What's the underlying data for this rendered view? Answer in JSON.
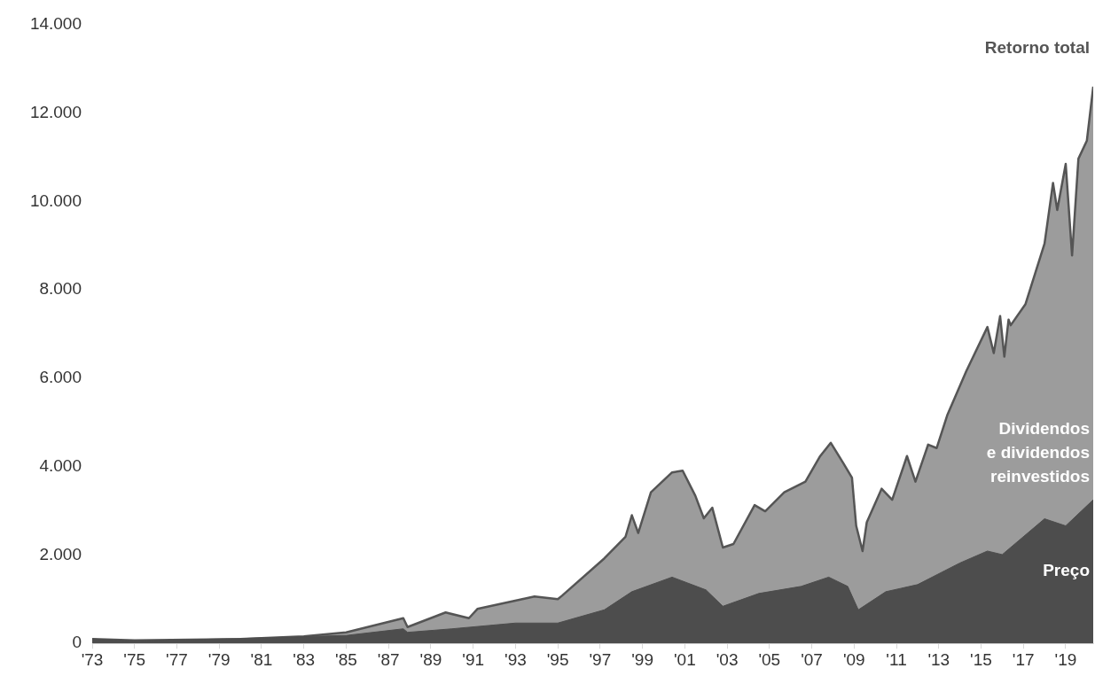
{
  "chart_data": {
    "type": "area",
    "annotations": [
      {
        "text": "Dividendos e dividendos reinvestidos",
        "x": 2020.3,
        "y": 4300
      }
    ],
    "series": [
      {
        "name": "Retorno total",
        "color": "#9c9c9c",
        "x": [
          1973,
          1975,
          1980,
          1983,
          1985,
          1987.7,
          1987.9,
          1989.7,
          1990.8,
          1991.2,
          1993.9,
          1995,
          1995.2,
          1997.2,
          1998.2,
          1998.5,
          1998.8,
          1999.4,
          2000.4,
          2000.9,
          2001.5,
          2001.9,
          2002.3,
          2002.8,
          2003.3,
          2004.3,
          2004.8,
          2005.7,
          2006.7,
          2007.4,
          2007.9,
          2008.5,
          2008.9,
          2009.1,
          2009.4,
          2009.6,
          2010.3,
          2010.8,
          2011.5,
          2011.9,
          2012.5,
          2012.9,
          2013.4,
          2014.3,
          2015.3,
          2015.6,
          2015.9,
          2016.1,
          2016.3,
          2016.4,
          2017.1,
          2018,
          2018.4,
          2018.6,
          2019,
          2019.3,
          2019.6,
          2020,
          2020.3
        ],
        "values": [
          100,
          70,
          100,
          160,
          250,
          570,
          370,
          700,
          570,
          780,
          1060,
          1000,
          1080,
          1925,
          2415,
          2900,
          2500,
          3420,
          3870,
          3910,
          3340,
          2830,
          3070,
          2170,
          2250,
          3130,
          2990,
          3420,
          3660,
          4240,
          4540,
          4070,
          3750,
          2660,
          2090,
          2740,
          3500,
          3250,
          4240,
          3660,
          4500,
          4420,
          5160,
          6160,
          7160,
          6570,
          7410,
          6490,
          7330,
          7200,
          7680,
          9050,
          10420,
          9810,
          10850,
          8780,
          10970,
          11380,
          12600
        ]
      },
      {
        "name": "Preço",
        "color": "#4d4d4d",
        "x": [
          1973,
          1975,
          1980,
          1985,
          1987.7,
          1987.9,
          1990,
          1993,
          1995,
          1997.2,
          1998.5,
          2000.4,
          2002,
          2002.8,
          2004.5,
          2006.5,
          2007.8,
          2008.7,
          2009.2,
          2010.5,
          2012,
          2014,
          2015.3,
          2016,
          2018,
          2019,
          2020.3
        ],
        "values": [
          100,
          60,
          110,
          180,
          330,
          250,
          330,
          460,
          460,
          760,
          1170,
          1500,
          1210,
          840,
          1130,
          1290,
          1500,
          1290,
          760,
          1170,
          1330,
          1820,
          2090,
          2010,
          2820,
          2660,
          3250
        ]
      }
    ],
    "xlim": [
      1973,
      2020.3
    ],
    "xticks": [
      {
        "value": 1973,
        "label": "'73"
      },
      {
        "value": 1975,
        "label": "'75"
      },
      {
        "value": 1977,
        "label": "'77"
      },
      {
        "value": 1979,
        "label": "'79"
      },
      {
        "value": 1981,
        "label": "'81"
      },
      {
        "value": 1983,
        "label": "'83"
      },
      {
        "value": 1985,
        "label": "'85"
      },
      {
        "value": 1987,
        "label": "'87"
      },
      {
        "value": 1989,
        "label": "'89"
      },
      {
        "value": 1991,
        "label": "'91"
      },
      {
        "value": 1993,
        "label": "'93"
      },
      {
        "value": 1995,
        "label": "'95"
      },
      {
        "value": 1997,
        "label": "'97"
      },
      {
        "value": 1999,
        "label": "'99"
      },
      {
        "value": 2001,
        "label": "'01"
      },
      {
        "value": 2003,
        "label": "'03"
      },
      {
        "value": 2005,
        "label": "'05"
      },
      {
        "value": 2007,
        "label": "'07"
      },
      {
        "value": 2009,
        "label": "'09"
      },
      {
        "value": 2011,
        "label": "'11"
      },
      {
        "value": 2013,
        "label": "'13"
      },
      {
        "value": 2015,
        "label": "'15"
      },
      {
        "value": 2017,
        "label": "'17"
      },
      {
        "value": 2019,
        "label": "'19"
      }
    ],
    "ylim": [
      0,
      14000
    ],
    "yticks": [
      0,
      {
        "value": 2000,
        "label": "2.000"
      },
      {
        "value": 4000,
        "label": "4.000"
      },
      {
        "value": 6000,
        "label": "6.000"
      },
      {
        "value": 8000,
        "label": "8.000"
      },
      {
        "value": 10000,
        "label": "10.000"
      },
      {
        "value": 12000,
        "label": "12.000"
      },
      {
        "value": 14000,
        "label": "14.000"
      }
    ],
    "grid": false,
    "legend": false
  }
}
